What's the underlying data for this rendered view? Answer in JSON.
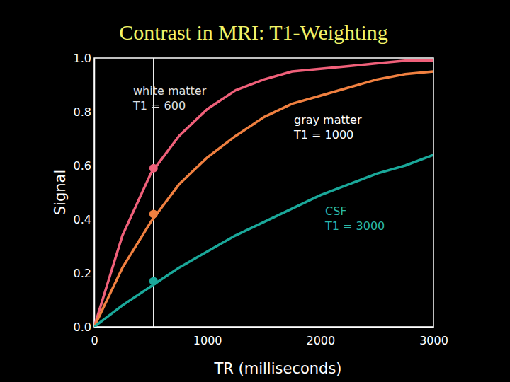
{
  "chart_data": {
    "type": "line",
    "title": "Contrast in MRI: T1-Weighting",
    "x_label": "TR (milliseconds)",
    "y_label": "Signal",
    "x": [
      0,
      250,
      500,
      750,
      1000,
      1250,
      1500,
      1750,
      2000,
      2250,
      2500,
      2750,
      3000
    ],
    "series": [
      {
        "name": "white matter",
        "annotation": "T1 = 600",
        "color": "#f0607a",
        "values": [
          0,
          0.34,
          0.57,
          0.71,
          0.81,
          0.88,
          0.92,
          0.95,
          0.96,
          0.97,
          0.98,
          0.99,
          0.99
        ],
        "marked_value": 0.59
      },
      {
        "name": "gray matter",
        "annotation": "T1 = 1000",
        "color": "#f08040",
        "values": [
          0,
          0.22,
          0.39,
          0.53,
          0.63,
          0.71,
          0.78,
          0.83,
          0.86,
          0.89,
          0.92,
          0.94,
          0.95
        ],
        "marked_value": 0.42
      },
      {
        "name": "CSF",
        "annotation": "T1 = 3000",
        "color": "#1aa89a",
        "values": [
          0,
          0.08,
          0.15,
          0.22,
          0.28,
          0.34,
          0.39,
          0.44,
          0.49,
          0.53,
          0.57,
          0.6,
          0.64
        ],
        "marked_value": 0.17
      }
    ],
    "marked_tr": 525,
    "xlim": [
      0,
      3000
    ],
    "xticks": [
      0,
      1000,
      2000,
      3000
    ],
    "ylim": [
      0,
      1
    ],
    "yticks": [
      {
        "value": 0,
        "label": "0.0"
      },
      0.2,
      0.4,
      0.6,
      0.8,
      {
        "value": 1,
        "label": "1.0"
      }
    ],
    "grid": false
  }
}
